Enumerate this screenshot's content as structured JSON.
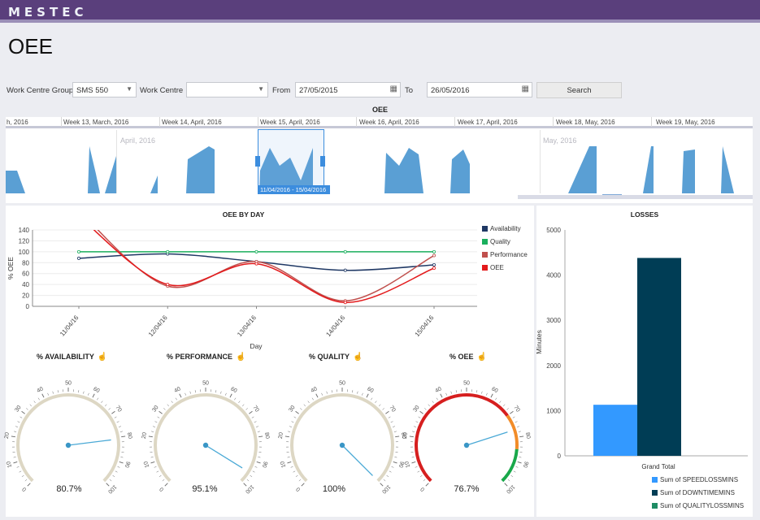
{
  "app": {
    "logo": "MESTEC",
    "page_title": "OEE"
  },
  "filters": {
    "work_centre_group_label": "Work Centre Group",
    "work_centre_group_value": "SMS 550",
    "work_centre_label": "Work Centre",
    "work_centre_value": "",
    "from_label": "From",
    "from_value": "27/05/2015",
    "to_label": "To",
    "to_value": "26/05/2016",
    "search_label": "Search"
  },
  "navigator": {
    "title": "OEE",
    "weeks": [
      "h, 2016",
      "Week 13, March, 2016",
      "Week 14, April, 2016",
      "Week 15, April, 2016",
      "Week 16, April, 2016",
      "Week 17, April, 2016",
      "Week 18, May, 2016",
      "Week 19, May, 2016"
    ],
    "months": [
      "April, 2016",
      "May, 2016"
    ],
    "selection_label": "11/04/2016 - 15/04/2016"
  },
  "oee_by_day": {
    "title": "OEE BY DAY",
    "xlabel": "Day",
    "ylabel": "% OEE"
  },
  "chart_data": [
    {
      "type": "line",
      "title": "OEE BY DAY",
      "xlabel": "Day",
      "ylabel": "% OEE",
      "x": [
        "11/04/16",
        "12/04/16",
        "13/04/16",
        "14/04/16",
        "15/04/16"
      ],
      "ylim": [
        0,
        140
      ],
      "yticks": [
        0,
        20,
        40,
        60,
        80,
        100,
        120,
        140
      ],
      "legend_position": "right",
      "series": [
        {
          "name": "Availability",
          "color": "#1f3864",
          "values": [
            88,
            96,
            82,
            66,
            76
          ]
        },
        {
          "name": "Quality",
          "color": "#1aaf5d",
          "values": [
            100,
            100,
            100,
            100,
            100
          ]
        },
        {
          "name": "Performance",
          "color": "#c0504d",
          "values": [
            175,
            37,
            82,
            10,
            93
          ]
        },
        {
          "name": "OEE",
          "color": "#e31a1c",
          "values": [
            165,
            40,
            78,
            7,
            70
          ]
        }
      ]
    },
    {
      "type": "bar",
      "title": "LOSSES",
      "xlabel": "",
      "ylabel": "Minutes",
      "categories": [
        "Grand Total"
      ],
      "ylim": [
        0,
        5000
      ],
      "yticks": [
        0,
        1000,
        2000,
        3000,
        4000,
        5000
      ],
      "legend_position": "bottom-right",
      "series": [
        {
          "name": "Sum of SPEEDLOSSMINS",
          "color": "#3399ff",
          "values": [
            1130
          ]
        },
        {
          "name": "Sum of DOWNTIMEMINS",
          "color": "#003d55",
          "values": [
            4380
          ]
        },
        {
          "name": "Sum of QUALITYLOSSMINS",
          "color": "#1e8c64",
          "values": [
            0
          ]
        }
      ]
    }
  ],
  "gauges": [
    {
      "title": "% AVAILABILITY",
      "value": 80.7,
      "display": "80.7%",
      "band": "plain"
    },
    {
      "title": "% PERFORMANCE",
      "value": 95.1,
      "display": "95.1%",
      "band": "plain"
    },
    {
      "title": "% QUALITY",
      "value": 100,
      "display": "100%",
      "band": "plain"
    },
    {
      "title": "% OEE",
      "value": 76.7,
      "display": "76.7%",
      "band": "traffic"
    }
  ],
  "gauge_scale": {
    "min": 0,
    "max": 100,
    "labels": [
      "0",
      "10",
      "20",
      "30",
      "40",
      "50",
      "60",
      "70",
      "80",
      "90",
      "100"
    ]
  },
  "colors": {
    "header": "#5a3f7c",
    "accent": "#3c8dde",
    "navigator_fill": "#5a9fd4",
    "gauge_track": "#ddd7c4",
    "gauge_needle": "#4aa9d6"
  },
  "icons": {
    "gauge_title_icon": "pointer-hand-icon"
  }
}
